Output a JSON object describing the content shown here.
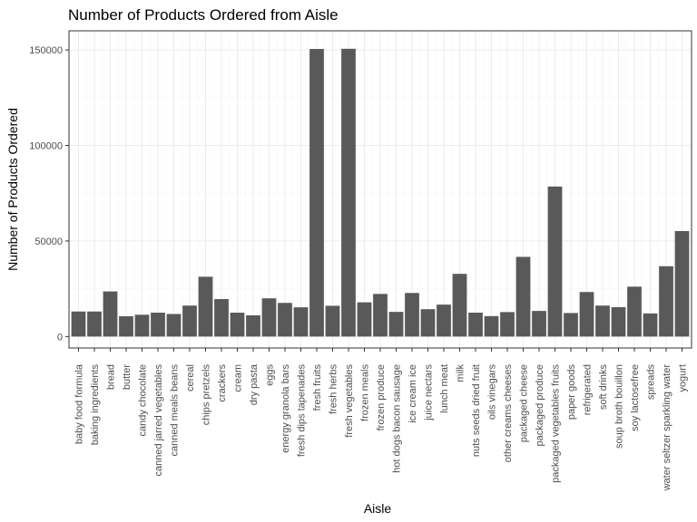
{
  "chart_data": {
    "type": "bar",
    "title": "Number of Products Ordered from Aisle",
    "xlabel": "Aisle",
    "ylabel": "Number of Products Ordered",
    "ylim": [
      -6000,
      160000
    ],
    "yticks": [
      0,
      50000,
      100000,
      150000
    ],
    "ytick_labels": [
      "0",
      "50000",
      "100000",
      "150000"
    ],
    "grid": true,
    "colors": {
      "bar": "#595959",
      "grid_major": "#ebebeb",
      "grid_minor": "#f5f5f5",
      "border": "#333333",
      "text": "#4d4d4d"
    },
    "categories": [
      "baby food formula",
      "baking ingredients",
      "bread",
      "butter",
      "candy chocolate",
      "canned jarred vegetables",
      "canned meals beans",
      "cereal",
      "chips pretzels",
      "crackers",
      "cream",
      "dry pasta",
      "eggs",
      "energy granola bars",
      "fresh dips tapenades",
      "fresh fruits",
      "fresh herbs",
      "fresh vegetables",
      "frozen meals",
      "frozen produce",
      "hot dogs bacon sausage",
      "ice cream ice",
      "juice nectars",
      "lunch meat",
      "milk",
      "nuts seeds dried fruit",
      "oils vinegars",
      "other creams cheeses",
      "packaged cheese",
      "packaged produce",
      "packaged vegetables fruits",
      "paper goods",
      "refrigerated",
      "soft drinks",
      "soup broth bouillon",
      "soy lactosefree",
      "spreads",
      "water seltzer sparkling water",
      "yogurt"
    ],
    "values": [
      13100,
      13100,
      23600,
      10600,
      11400,
      12500,
      11800,
      16200,
      31300,
      19600,
      12500,
      11100,
      20000,
      17600,
      15300,
      150500,
      16100,
      150600,
      17900,
      22300,
      12900,
      22800,
      14300,
      16700,
      32800,
      12500,
      10700,
      12800,
      41700,
      13400,
      78500,
      12300,
      23300,
      16200,
      15400,
      26100,
      12100,
      36800,
      55200
    ]
  }
}
